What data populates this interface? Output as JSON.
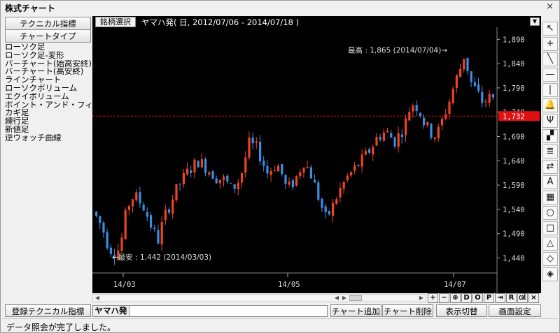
{
  "window": {
    "title": "株式チャート",
    "close_glyph": "×"
  },
  "left": {
    "technical_button": "テクニカル指標",
    "charttype_button": "チャートタイプ",
    "chart_types": [
      "ローソク足",
      "ローソク足-変形",
      "バーチャート(始高安終)",
      "バーチャート(高安終)",
      "ラインチャート",
      "ローソクボリューム",
      "エクイボリューム",
      "ポイント・アンド・フィギュア",
      "カギ足",
      "練行足",
      "新値足",
      "逆ウォッチ曲線"
    ],
    "registered_button": "登録テクニカル指標"
  },
  "header": {
    "select_button": "銘柄選択",
    "info": "ヤマハ発( 日, 2012/07/06 - 2014/07/18 )",
    "dropdown_glyph": "▼"
  },
  "annotations": {
    "high": "最高 : 1,865 (2014/07/04)→",
    "low": "←最安 : 1,442 (2014/03/03)"
  },
  "chart_data": {
    "type": "candlestick",
    "yticks": [
      1890,
      1840,
      1790,
      1740,
      1690,
      1640,
      1590,
      1540,
      1490,
      1440
    ],
    "ytick_labels": [
      "1,890",
      "1,840",
      "1,790",
      "1,740",
      "1,690",
      "1,640",
      "1,590",
      "1,540",
      "1,490",
      "1,440"
    ],
    "xticks": [
      "14/03",
      "14/05",
      "14/07"
    ],
    "ylim": [
      1412,
      1912
    ],
    "current_price": 1732,
    "current_price_label": "1,732",
    "high": 1865,
    "low": 1442,
    "colors": {
      "up": "#ee4422",
      "down": "#3a8ee6",
      "bg": "#000000",
      "grid": "#555555",
      "price_line": "#dd1111"
    }
  },
  "toolbar": {
    "plus": "+",
    "minus": "−",
    "zoom": "⊕",
    "d": "D",
    "o": "O",
    "p": "P",
    "end": "⇥",
    "r": "R",
    "chart": "㎈",
    "close": "×"
  },
  "sidetools": [
    "↖",
    "+",
    "╲",
    "—",
    "|",
    "🔔",
    "Ψ",
    "▞",
    "≣",
    "⇄",
    "A",
    "▦",
    "○",
    "□",
    "△",
    "◇",
    "◈"
  ],
  "tabs": {
    "active": "ヤマハ発"
  },
  "bottom_buttons": {
    "add": "チャート追加",
    "delete": "チャート削除",
    "toggle": "表示切替",
    "settings": "画面設定"
  },
  "status": {
    "message": "データ照会が完了しました。"
  }
}
